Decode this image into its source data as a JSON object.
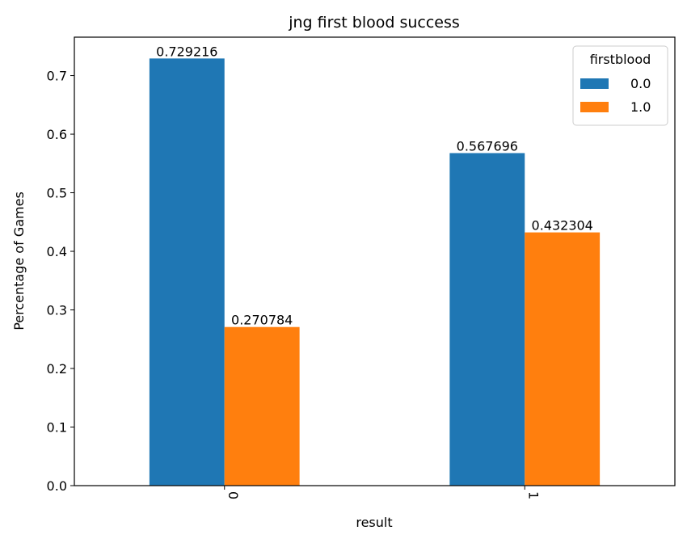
{
  "chart_data": {
    "type": "bar",
    "title": "jng first blood success",
    "xlabel": "result",
    "ylabel": "Percentage of Games",
    "categories": [
      "0",
      "1"
    ],
    "series": [
      {
        "name": "0.0",
        "color": "#1f77b4",
        "values": [
          0.729216,
          0.567696
        ]
      },
      {
        "name": "1.0",
        "color": "#ff7f0e",
        "values": [
          0.270784,
          0.432304
        ]
      }
    ],
    "data_labels": [
      [
        "0.729216",
        "0.567696"
      ],
      [
        "0.270784",
        "0.432304"
      ]
    ],
    "ylim": [
      0,
      0.7656
    ],
    "yticks": [
      0.0,
      0.1,
      0.2,
      0.3,
      0.4,
      0.5,
      0.6,
      0.7
    ],
    "ytick_labels": [
      "0.0",
      "0.1",
      "0.2",
      "0.3",
      "0.4",
      "0.5",
      "0.6",
      "0.7"
    ],
    "legend": {
      "title": "firstblood",
      "position": "top-right"
    },
    "grid": false
  }
}
